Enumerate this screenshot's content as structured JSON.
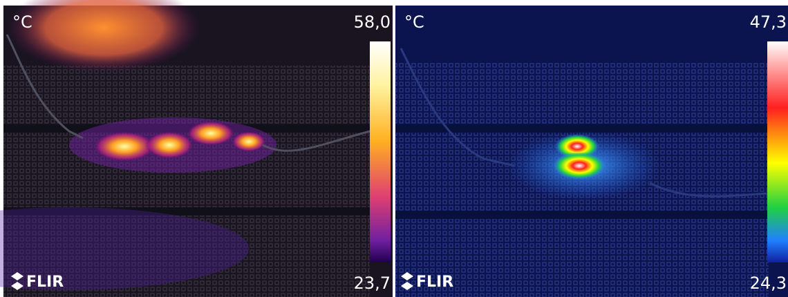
{
  "panels": [
    {
      "unit": "°C",
      "max": "58,0",
      "min": "23,7",
      "logo": "FLIR"
    },
    {
      "unit": "°C",
      "max": "47,3",
      "min": "24,3",
      "logo": "FLIR"
    }
  ]
}
